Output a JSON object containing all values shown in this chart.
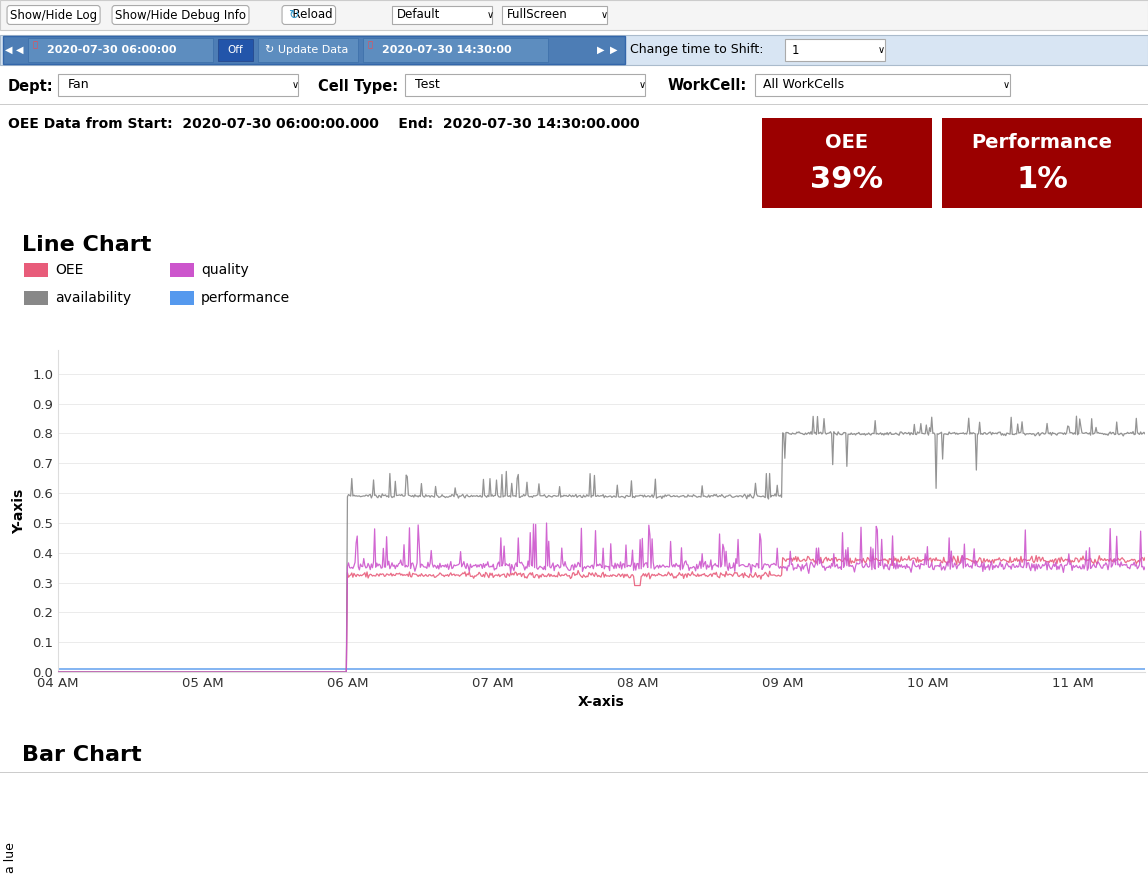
{
  "bg_color": "#ffffff",
  "nav_dates": [
    "2020-07-30 06:00:00",
    "2020-07-30 14:30:00"
  ],
  "shift_label": "Change time to Shift:",
  "shift_value": "1",
  "dept_label": "Dept:",
  "dept_value": "Fan",
  "celltype_label": "Cell Type:",
  "celltype_value": "Test",
  "workcell_label": "WorkCell:",
  "workcell_value": "All WorkCells",
  "oee_data_label": "OEE Data from Start:  2020-07-30 06:00:00.000    End:  2020-07-30 14:30:00.000",
  "oee_box_color": "#9b0000",
  "oee_label": "OEE",
  "oee_value": "39%",
  "performance_label": "Performance",
  "performance_value": "1%",
  "line_chart_title": "Line Chart",
  "legend_items": [
    {
      "label": "OEE",
      "color": "#e85c7a"
    },
    {
      "label": "quality",
      "color": "#cc55cc"
    },
    {
      "label": "availability",
      "color": "#888888"
    },
    {
      "label": "performance",
      "color": "#5599ee"
    }
  ],
  "y_axis_label": "Y-axis",
  "x_axis_label": "X-axis",
  "x_ticks": [
    "04 AM",
    "05 AM",
    "06 AM",
    "07 AM",
    "08 AM",
    "09 AM",
    "10 AM",
    "11 AM"
  ],
  "y_ticks": [
    0.0,
    0.1,
    0.2,
    0.3,
    0.4,
    0.5,
    0.6,
    0.7,
    0.8,
    0.9,
    1.0
  ],
  "bar_chart_title": "Bar Chart",
  "bar_y_axis_label": "a lue"
}
